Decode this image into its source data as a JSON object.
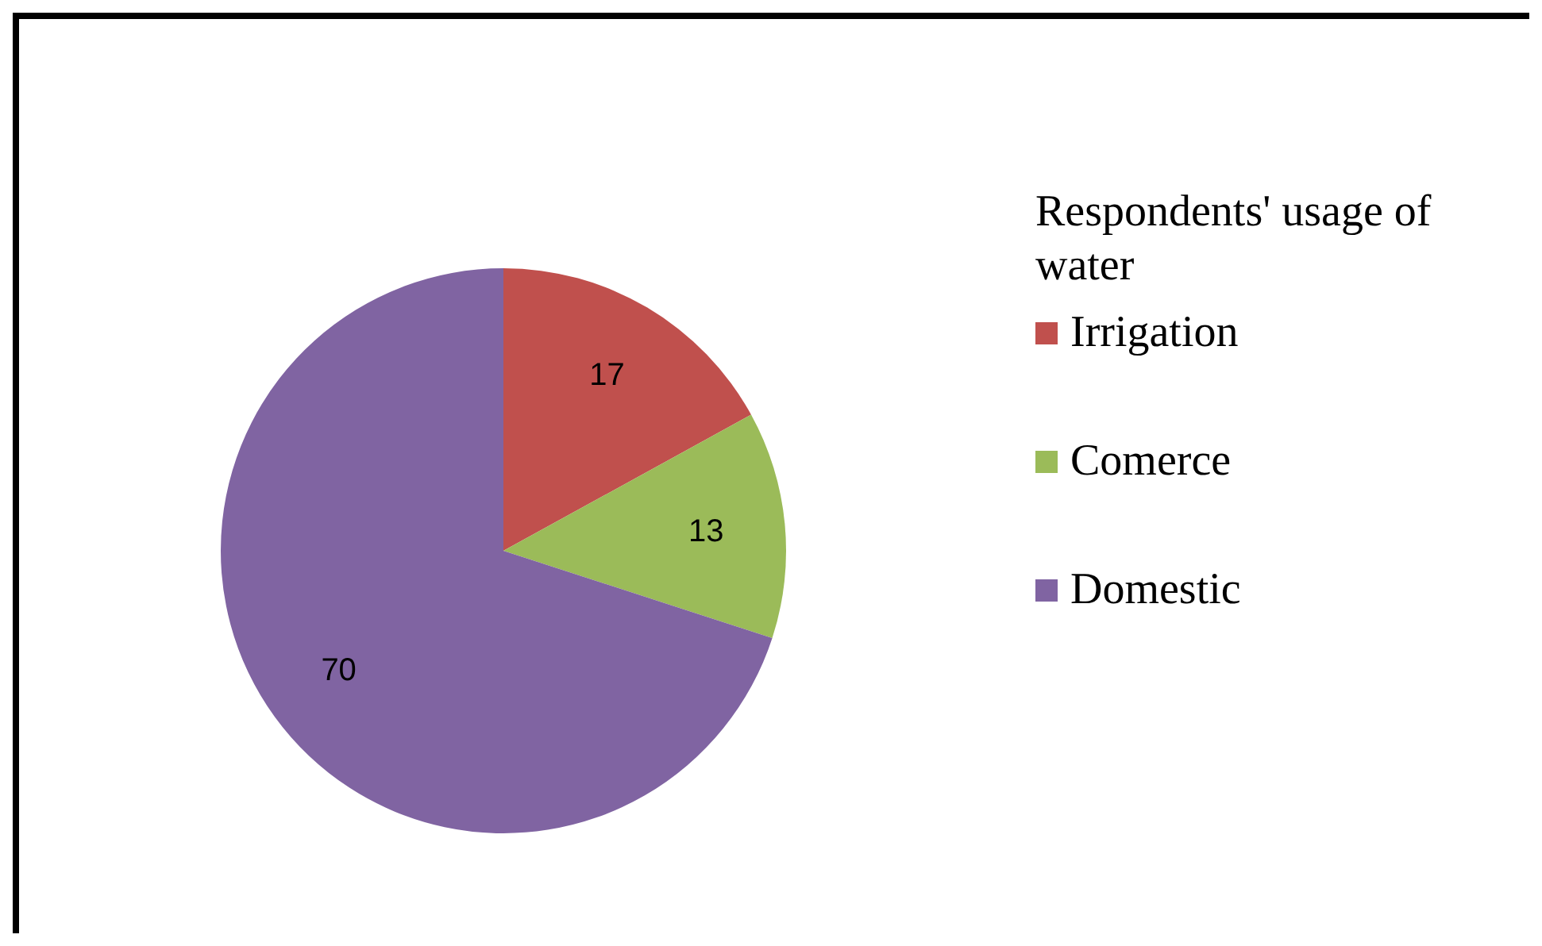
{
  "chart_data": {
    "type": "pie",
    "legend_title": "Respondents' usage of water",
    "categories": [
      "Irrigation",
      "Comerce",
      "Domestic"
    ],
    "values": [
      17,
      13,
      70
    ],
    "colors": [
      "#c0504d",
      "#9bbb59",
      "#8064a2"
    ],
    "data_labels": true,
    "legend": "right"
  }
}
